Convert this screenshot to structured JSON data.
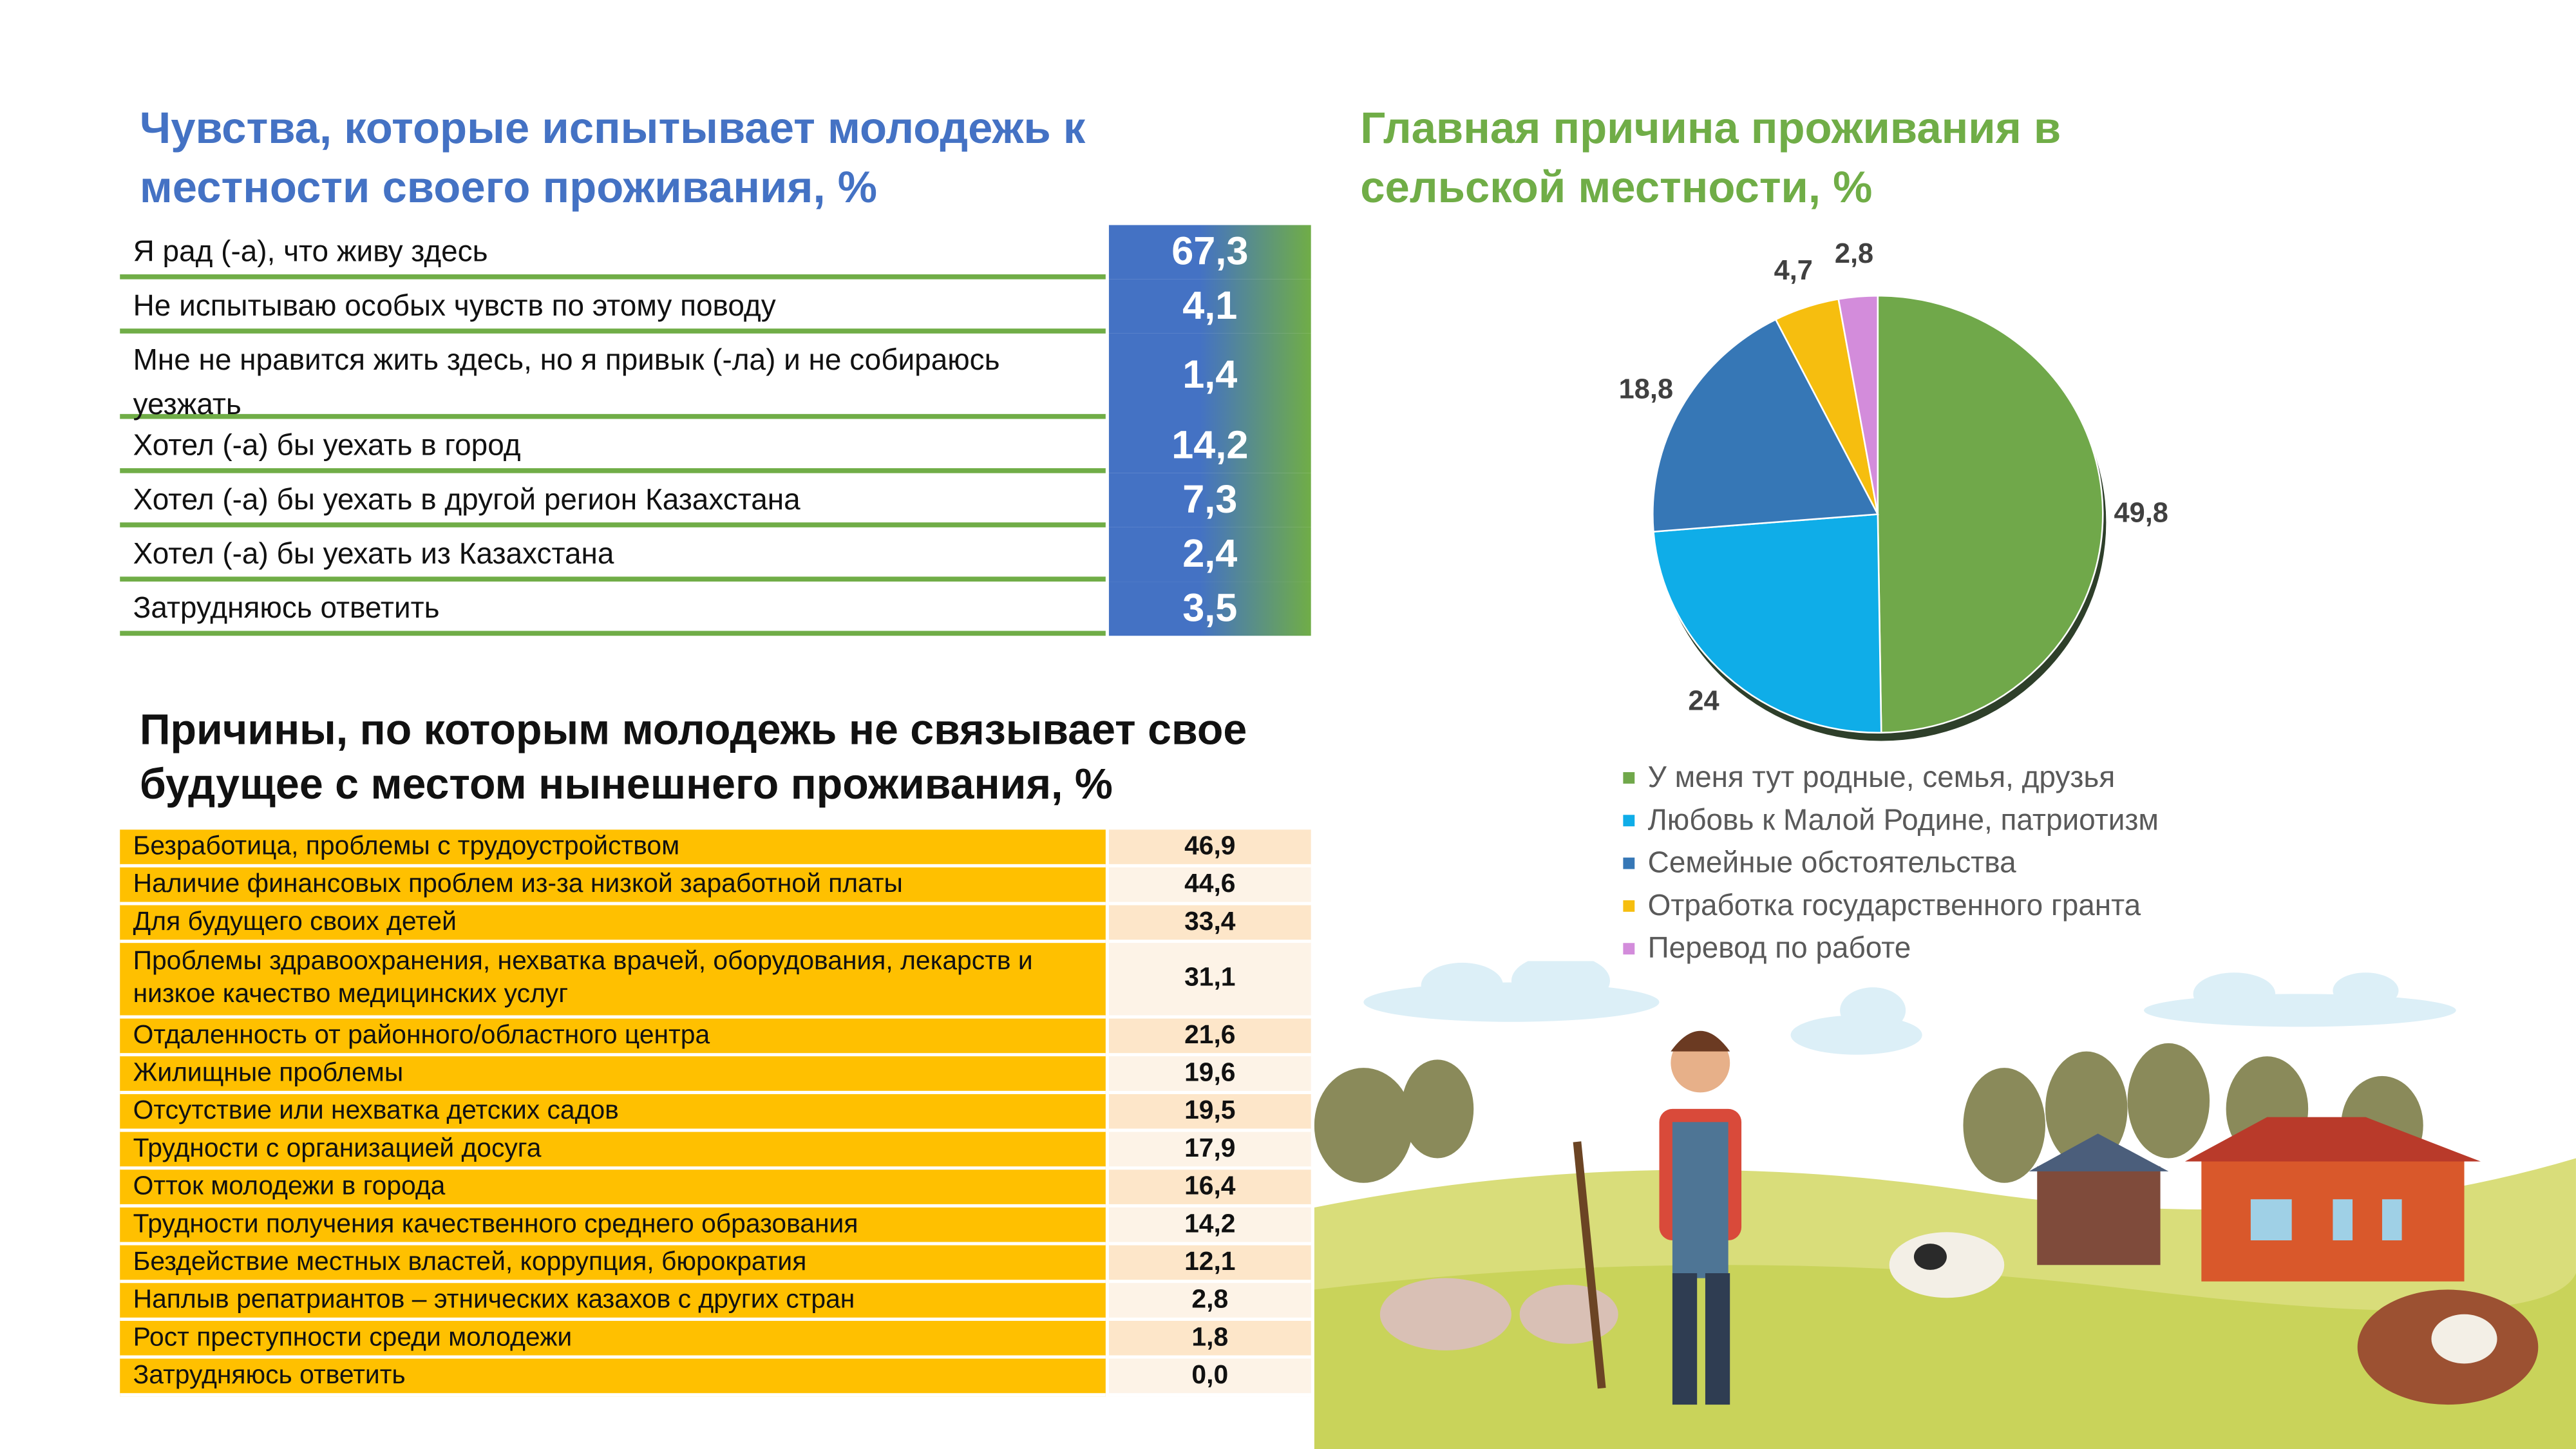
{
  "feelings": {
    "title": "Чувства, которые испытывает молодежь к местности своего проживания, %",
    "rows": [
      {
        "label": "Я рад (-а), что живу здесь",
        "value": "67,3"
      },
      {
        "label": "Не испытываю особых чувств по этому поводу",
        "value": "4,1"
      },
      {
        "label": "Мне не нравится жить здесь, но я привык (-ла) и не собираюсь уезжать",
        "value": "1,4"
      },
      {
        "label": "Хотел (-а) бы уехать в город",
        "value": "14,2"
      },
      {
        "label": "Хотел (-а) бы уехать в другой регион Казахстана",
        "value": "7,3"
      },
      {
        "label": "Хотел (-а) бы уехать из Казахстана",
        "value": "2,4"
      },
      {
        "label": "Затрудняюсь ответить",
        "value": "3,5"
      }
    ]
  },
  "reasons": {
    "title": "Причины, по которым молодежь не связывает свое будущее с местом нынешнего проживания, %",
    "rows": [
      {
        "label": "Безработица, проблемы с трудоустройством",
        "value": "46,9"
      },
      {
        "label": "Наличие финансовых проблем из-за низкой заработной платы",
        "value": "44,6"
      },
      {
        "label": "Для будущего своих детей",
        "value": "33,4"
      },
      {
        "label": "Проблемы здравоохранения, нехватка врачей, оборудования, лекарств и низкое качество медицинских услуг",
        "value": "31,1"
      },
      {
        "label": "Отдаленность от районного/областного центра",
        "value": "21,6"
      },
      {
        "label": "Жилищные проблемы",
        "value": "19,6"
      },
      {
        "label": "Отсутствие или нехватка детских садов",
        "value": "19,5"
      },
      {
        "label": "Трудности с организацией досуга",
        "value": "17,9"
      },
      {
        "label": "Отток молодежи в города",
        "value": "16,4"
      },
      {
        "label": "Трудности получения качественного среднего образования",
        "value": "14,2"
      },
      {
        "label": "Бездействие местных властей, коррупция, бюрократия",
        "value": "12,1"
      },
      {
        "label": "Наплыв репатриантов – этнических казахов с других стран",
        "value": "2,8"
      },
      {
        "label": "Рост преступности среди молодежи",
        "value": "1,8"
      },
      {
        "label": "Затрудняюсь ответить",
        "value": "0,0"
      }
    ]
  },
  "chart_data": {
    "type": "pie",
    "title": "Главная причина проживания в сельской местности, %",
    "categories": [
      "У меня тут родные, семья, друзья",
      "Любовь к Малой Родине, патриотизм",
      "Семейные обстоятельства",
      "Отработка государственного гранта",
      "Перевод по работе"
    ],
    "values": [
      49.8,
      24,
      18.8,
      4.7,
      2.8
    ],
    "labels": [
      "49,8",
      "24",
      "18,8",
      "4,7",
      "2,8"
    ],
    "colors": [
      "#70A84A",
      "#0FADE8",
      "#3677B6",
      "#F6BE0F",
      "#D38CDB"
    ],
    "legend_position": "bottom"
  },
  "colors": {
    "blue": "#4472C4",
    "green": "#70AD47",
    "yellow": "#FFC000",
    "val_a": "#FDE6C9",
    "val_b": "#FDF3E7"
  }
}
